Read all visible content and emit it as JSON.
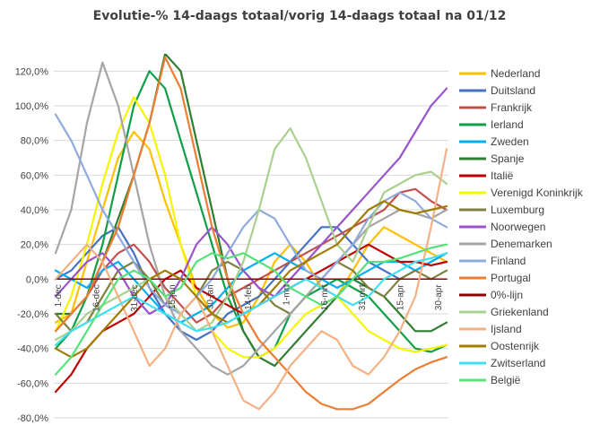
{
  "chart_data": {
    "type": "line",
    "title": "Evolutie-% 14-daags totaal/vorig  14-daags totaal na 01/12",
    "xlabel": "",
    "ylabel": "",
    "ylim": [
      -0.8,
      1.3
    ],
    "grid": true,
    "legend_position": "right",
    "y_ticks": [
      "120,0%",
      "100,0%",
      "80,0%",
      "60,0%",
      "40,0%",
      "20,0%",
      "0,0%",
      "-20,0%",
      "-40,0%",
      "-60,0%",
      "-80,0%"
    ],
    "x_ticks": [
      "1-dec",
      "16-dec",
      "31-dec",
      "15-jan",
      "30-jan",
      "14-feb",
      "1-mrt",
      "16-mrt",
      "31-mrt",
      "15-apr",
      "30-apr"
    ],
    "x_domain": [
      "1-dec",
      "5-mei"
    ],
    "series": [
      {
        "name": "Nederland",
        "color": "#ffc000",
        "values": [
          -0.25,
          -0.2,
          0.1,
          0.4,
          0.7,
          0.85,
          0.75,
          0.45,
          0.2,
          -0.05,
          -0.2,
          -0.28,
          -0.25,
          -0.1,
          0.1,
          0.2,
          0.1,
          -0.05,
          -0.1,
          0.05,
          0.2,
          0.3,
          0.25,
          0.2,
          0.15,
          0.1
        ]
      },
      {
        "name": "Duitsland",
        "color": "#4472c4",
        "values": [
          0.0,
          0.05,
          0.15,
          0.25,
          0.3,
          0.15,
          -0.05,
          -0.2,
          -0.3,
          -0.35,
          -0.3,
          -0.2,
          -0.15,
          -0.1,
          0.0,
          0.1,
          0.2,
          0.3,
          0.3,
          0.2,
          0.1,
          0.05,
          0.0,
          0.05,
          0.1,
          0.15
        ]
      },
      {
        "name": "Frankrijk",
        "color": "#c0504d",
        "values": [
          -0.3,
          -0.2,
          -0.1,
          0.05,
          0.15,
          0.2,
          0.1,
          -0.05,
          -0.15,
          -0.25,
          -0.2,
          -0.1,
          -0.05,
          0.0,
          0.05,
          0.1,
          0.15,
          0.2,
          0.25,
          0.3,
          0.35,
          0.4,
          0.5,
          0.52,
          0.45,
          0.4
        ]
      },
      {
        "name": "Ierland",
        "color": "#0e9f47",
        "values": [
          -0.4,
          -0.3,
          -0.1,
          0.2,
          0.6,
          1.0,
          1.2,
          1.1,
          0.8,
          0.5,
          0.2,
          -0.1,
          -0.3,
          -0.45,
          -0.4,
          -0.2,
          -0.1,
          -0.05,
          0.0,
          -0.05,
          -0.1,
          -0.2,
          -0.3,
          -0.4,
          -0.42,
          -0.38
        ]
      },
      {
        "name": "Zweden",
        "color": "#00b0f0",
        "values": [
          0.05,
          0.0,
          -0.05,
          0.05,
          0.1,
          0.0,
          -0.1,
          -0.2,
          -0.25,
          -0.2,
          -0.15,
          -0.05,
          0.05,
          0.1,
          0.15,
          0.1,
          0.05,
          0.0,
          -0.05,
          0.0,
          0.05,
          0.1,
          0.1,
          0.05,
          0.1,
          0.15
        ]
      },
      {
        "name": "Spanje",
        "color": "#2e7d32",
        "values": [
          -0.2,
          -0.2,
          -0.1,
          0.1,
          0.35,
          0.6,
          0.9,
          1.3,
          1.2,
          0.8,
          0.4,
          0.0,
          -0.3,
          -0.45,
          -0.5,
          -0.4,
          -0.3,
          -0.2,
          -0.1,
          0.0,
          -0.05,
          -0.1,
          -0.2,
          -0.3,
          -0.3,
          -0.25
        ]
      },
      {
        "name": "Italië",
        "color": "#c00000",
        "values": [
          -0.65,
          -0.55,
          -0.4,
          -0.3,
          -0.25,
          -0.2,
          -0.1,
          0.0,
          0.05,
          -0.05,
          -0.1,
          -0.15,
          -0.2,
          -0.15,
          -0.1,
          -0.05,
          0.0,
          0.05,
          0.1,
          0.15,
          0.2,
          0.15,
          0.1,
          0.1,
          0.08,
          0.1
        ]
      },
      {
        "name": "Verenigd Koninkrijk",
        "color": "#f5f500",
        "values": [
          -0.3,
          -0.1,
          0.2,
          0.55,
          0.85,
          1.05,
          0.9,
          0.6,
          0.2,
          -0.1,
          -0.3,
          -0.4,
          -0.45,
          -0.45,
          -0.4,
          -0.3,
          -0.2,
          -0.15,
          -0.1,
          -0.2,
          -0.3,
          -0.35,
          -0.4,
          -0.42,
          -0.4,
          -0.38
        ]
      },
      {
        "name": "Luxemburg",
        "color": "#7f7f3f",
        "values": [
          -0.2,
          -0.3,
          -0.25,
          -0.1,
          0.05,
          0.1,
          0.0,
          -0.15,
          -0.2,
          -0.1,
          0.05,
          0.1,
          0.05,
          -0.05,
          -0.15,
          -0.2,
          -0.1,
          0.0,
          0.1,
          0.05,
          -0.05,
          -0.1,
          0.0,
          0.05,
          0.0,
          0.05
        ]
      },
      {
        "name": "Noorwegen",
        "color": "#9954cc",
        "values": [
          -0.1,
          0.0,
          0.1,
          0.15,
          0.05,
          -0.1,
          -0.2,
          -0.15,
          0.0,
          0.2,
          0.3,
          0.2,
          0.05,
          -0.05,
          -0.1,
          0.0,
          0.1,
          0.2,
          0.3,
          0.4,
          0.5,
          0.6,
          0.7,
          0.85,
          1.0,
          1.1
        ]
      },
      {
        "name": "Denemarken",
        "color": "#a5a5a5",
        "values": [
          0.15,
          0.4,
          0.9,
          1.25,
          1.0,
          0.6,
          0.2,
          -0.1,
          -0.3,
          -0.4,
          -0.5,
          -0.55,
          -0.5,
          -0.4,
          -0.3,
          -0.2,
          -0.1,
          0.0,
          0.1,
          0.2,
          0.3,
          0.35,
          0.4,
          0.38,
          0.35,
          0.4
        ]
      },
      {
        "name": "Finland",
        "color": "#8faadc",
        "values": [
          0.95,
          0.8,
          0.6,
          0.4,
          0.25,
          0.1,
          -0.05,
          -0.15,
          -0.2,
          -0.1,
          0.0,
          0.15,
          0.3,
          0.4,
          0.35,
          0.2,
          0.05,
          0.0,
          0.1,
          0.2,
          0.35,
          0.45,
          0.5,
          0.45,
          0.35,
          0.3
        ]
      },
      {
        "name": "Portugal",
        "color": "#ed7d31",
        "values": [
          -0.3,
          -0.2,
          -0.1,
          0.1,
          0.3,
          0.6,
          0.9,
          1.28,
          1.1,
          0.7,
          0.3,
          0.0,
          -0.2,
          -0.35,
          -0.45,
          -0.55,
          -0.65,
          -0.72,
          -0.75,
          -0.75,
          -0.72,
          -0.65,
          -0.58,
          -0.52,
          -0.48,
          -0.45
        ]
      },
      {
        "name": "0%-lijn",
        "color": "#8b0000",
        "values": [
          0,
          0,
          0,
          0,
          0,
          0,
          0,
          0,
          0,
          0,
          0,
          0,
          0,
          0,
          0,
          0,
          0,
          0,
          0,
          0,
          0,
          0,
          0,
          0,
          0,
          0
        ]
      },
      {
        "name": "Griekenland",
        "color": "#a9d18e",
        "values": [
          -0.35,
          -0.3,
          -0.2,
          -0.15,
          -0.1,
          -0.05,
          0.0,
          -0.1,
          -0.2,
          -0.3,
          -0.25,
          -0.1,
          0.1,
          0.4,
          0.75,
          0.87,
          0.7,
          0.45,
          0.2,
          0.1,
          0.3,
          0.5,
          0.55,
          0.6,
          0.62,
          0.55
        ]
      },
      {
        "name": "Ijsland",
        "color": "#f4b183",
        "values": [
          0.0,
          0.1,
          0.2,
          0.1,
          -0.1,
          -0.3,
          -0.5,
          -0.4,
          -0.2,
          -0.1,
          -0.3,
          -0.5,
          -0.7,
          -0.75,
          -0.65,
          -0.5,
          -0.4,
          -0.3,
          -0.35,
          -0.5,
          -0.55,
          -0.45,
          -0.3,
          -0.1,
          0.3,
          0.75
        ]
      },
      {
        "name": "Oostenrijk",
        "color": "#a07c00",
        "values": [
          -0.4,
          -0.45,
          -0.4,
          -0.3,
          -0.2,
          -0.1,
          0.0,
          0.05,
          0.0,
          -0.1,
          -0.2,
          -0.25,
          -0.2,
          -0.15,
          -0.05,
          0.05,
          0.1,
          0.15,
          0.2,
          0.3,
          0.4,
          0.45,
          0.4,
          0.38,
          0.4,
          0.42
        ]
      },
      {
        "name": "Zwitserland",
        "color": "#3fe0f0",
        "values": [
          -0.38,
          -0.3,
          -0.25,
          -0.2,
          -0.15,
          -0.1,
          -0.15,
          -0.2,
          -0.25,
          -0.3,
          -0.28,
          -0.25,
          -0.2,
          -0.15,
          -0.1,
          -0.05,
          0.0,
          -0.05,
          -0.1,
          -0.15,
          -0.1,
          0.0,
          0.05,
          0.1,
          0.12,
          0.15
        ]
      },
      {
        "name": "België",
        "color": "#56e27a",
        "values": [
          -0.55,
          -0.45,
          -0.3,
          -0.15,
          0.0,
          0.05,
          0.0,
          -0.1,
          -0.05,
          0.1,
          0.15,
          0.12,
          0.15,
          0.1,
          0.05,
          -0.05,
          -0.1,
          -0.15,
          -0.1,
          0.0,
          0.1,
          0.1,
          0.12,
          0.15,
          0.18,
          0.2
        ]
      }
    ]
  }
}
